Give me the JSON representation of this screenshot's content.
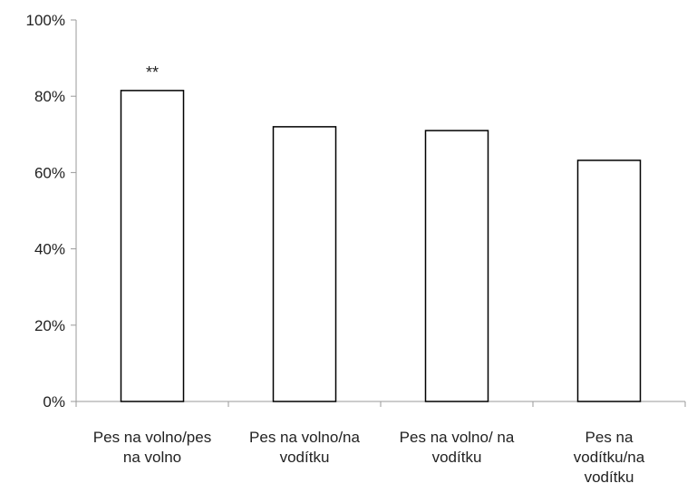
{
  "chart_data": {
    "type": "bar",
    "categories": [
      "Pes na volno/pes na volno",
      "Pes na volno/na vodítku",
      "Pes na volno/ na vodítku",
      "Pes na vodítku/na vodítku"
    ],
    "category_lines": [
      [
        "Pes na volno/pes",
        "na volno"
      ],
      [
        "Pes na volno/na",
        "vodítku"
      ],
      [
        "Pes na volno/ na",
        "vodítku"
      ],
      [
        "Pes na",
        "vodítku/na",
        "vodítku"
      ]
    ],
    "values": [
      0.815,
      0.72,
      0.71,
      0.632
    ],
    "annotations": [
      "**",
      "",
      "",
      ""
    ],
    "ylim": [
      0,
      1
    ],
    "yticks": [
      0,
      0.2,
      0.4,
      0.6,
      0.8,
      1.0
    ],
    "ytick_labels": [
      "0%",
      "20%",
      "40%",
      "60%",
      "80%",
      "100%"
    ],
    "grid": false,
    "colors": {
      "bar_fill": "#ffffff",
      "bar_stroke": "#000000",
      "axis": "#9a9a9a",
      "text": "#222222"
    }
  }
}
